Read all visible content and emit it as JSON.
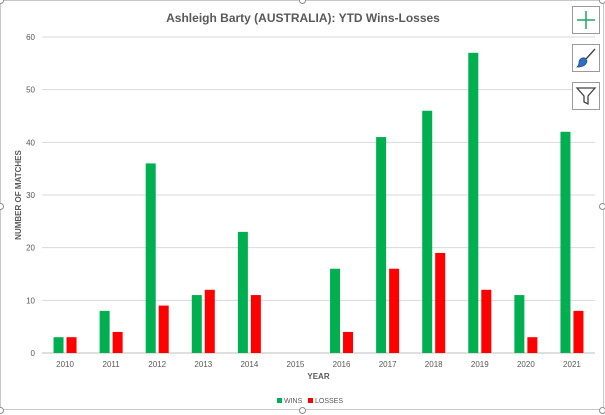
{
  "chart_data": {
    "type": "bar",
    "title": "Ashleigh Barty (AUSTRALIA): YTD Wins-Losses",
    "xlabel": "YEAR",
    "ylabel": "NUMBER OF MATCHES",
    "ylim": [
      0,
      60
    ],
    "yticks": [
      "0",
      "10",
      "20",
      "30",
      "40",
      "50",
      "60"
    ],
    "categories": [
      "2010",
      "2011",
      "2012",
      "2013",
      "2014",
      "2015",
      "2016",
      "2017",
      "2018",
      "2019",
      "2020",
      "2021"
    ],
    "series": [
      {
        "name": "WINS",
        "color": "#00b050",
        "values": [
          3,
          8,
          36,
          11,
          23,
          0,
          16,
          41,
          46,
          57,
          11,
          42
        ]
      },
      {
        "name": "LOSSES",
        "color": "#ff0000",
        "values": [
          3,
          4,
          9,
          12,
          11,
          0,
          4,
          16,
          19,
          12,
          3,
          8
        ]
      }
    ],
    "grid": true,
    "legend_position": "bottom"
  },
  "side_buttons": [
    {
      "name": "chart-elements-button",
      "icon": "plus-icon"
    },
    {
      "name": "chart-styles-button",
      "icon": "brush-icon"
    },
    {
      "name": "chart-filters-button",
      "icon": "funnel-icon"
    }
  ]
}
